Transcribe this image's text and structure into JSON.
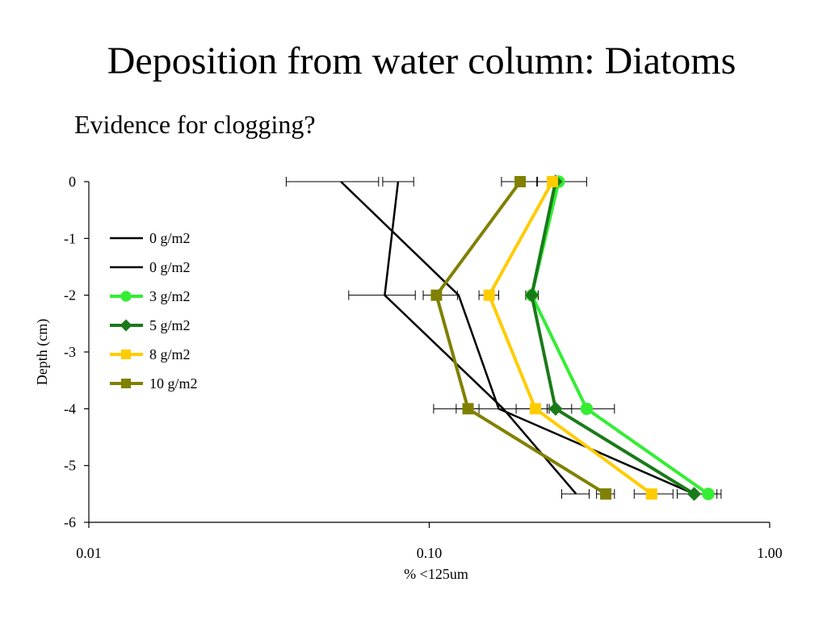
{
  "slide": {
    "title": "Deposition from water column: Diatoms",
    "subtitle": "Evidence for clogging?"
  },
  "chart_data": {
    "type": "line",
    "xlabel": "% <125um",
    "ylabel": "Depth (cm)",
    "xscale": "log",
    "xlim": [
      0.01,
      1.0
    ],
    "ylim": [
      -6,
      0
    ],
    "xticks": [
      0.01,
      0.1,
      1.0
    ],
    "xtick_labels": [
      "0.01",
      "0.10",
      "1.00"
    ],
    "yticks": [
      0,
      -1,
      -2,
      -3,
      -4,
      -5,
      -6
    ],
    "ytick_labels": [
      "0",
      "-1",
      "-2",
      "-3",
      "-4",
      "-5",
      "-6"
    ],
    "grid": false,
    "legend_position": "left",
    "series": [
      {
        "name": "0 g/m2",
        "color": "#000000",
        "marker": "none",
        "points": [
          {
            "x": 0.055,
            "y": 0,
            "xerr": [
              0.038,
              0.071
            ]
          },
          {
            "x": 0.122,
            "y": -2
          },
          {
            "x": 0.16,
            "y": -4
          },
          {
            "x": 0.6,
            "y": -5.5
          }
        ]
      },
      {
        "name": "0 g/m2",
        "color": "#000000",
        "marker": "none",
        "points": [
          {
            "x": 0.081,
            "y": 0,
            "xerr": [
              0.073,
              0.09
            ]
          },
          {
            "x": 0.074,
            "y": -2,
            "xerr": [
              0.058,
              0.091
            ]
          },
          {
            "x": 0.165,
            "y": -4,
            "xerr": [
              0.103,
              0.212
            ]
          },
          {
            "x": 0.27,
            "y": -5.5,
            "xerr": [
              0.245,
              0.295
            ]
          }
        ]
      },
      {
        "name": "3 g/m2",
        "color": "#33ee33",
        "marker": "circle",
        "points": [
          {
            "x": 0.24,
            "y": 0,
            "xerr": [
              0.208,
              0.29
            ]
          },
          {
            "x": 0.2,
            "y": -2,
            "xerr": [
              0.192,
              0.209
            ]
          },
          {
            "x": 0.29,
            "y": -4,
            "xerr": [
              0.225,
              0.35
            ]
          },
          {
            "x": 0.66,
            "y": -5.5,
            "xerr": [
              0.6,
              0.72
            ]
          }
        ]
      },
      {
        "name": "5 g/m2",
        "color": "#1a7a1a",
        "marker": "diamond",
        "points": [
          {
            "x": 0.235,
            "y": 0
          },
          {
            "x": 0.2,
            "y": -2
          },
          {
            "x": 0.235,
            "y": -4,
            "xerr": [
              0.222,
              0.262
            ]
          },
          {
            "x": 0.6,
            "y": -5.5,
            "xerr": [
              0.535,
              0.7
            ]
          }
        ]
      },
      {
        "name": "8 g/m2",
        "color": "#ffcc00",
        "marker": "square",
        "points": [
          {
            "x": 0.23,
            "y": 0
          },
          {
            "x": 0.15,
            "y": -2,
            "xerr": [
              0.14,
              0.16
            ]
          },
          {
            "x": 0.205,
            "y": -4,
            "xerr": [
              0.18,
              0.225
            ]
          },
          {
            "x": 0.45,
            "y": -5.5,
            "xerr": [
              0.4,
              0.52
            ]
          }
        ]
      },
      {
        "name": "10 g/m2",
        "color": "#808000",
        "marker": "square",
        "points": [
          {
            "x": 0.185,
            "y": 0,
            "xerr": [
              0.163,
              0.207
            ]
          },
          {
            "x": 0.105,
            "y": -2,
            "xerr": [
              0.096,
              0.121
            ]
          },
          {
            "x": 0.13,
            "y": -4,
            "xerr": [
              0.12,
              0.14
            ]
          },
          {
            "x": 0.33,
            "y": -5.5,
            "xerr": [
              0.31,
              0.35
            ]
          }
        ]
      }
    ]
  }
}
